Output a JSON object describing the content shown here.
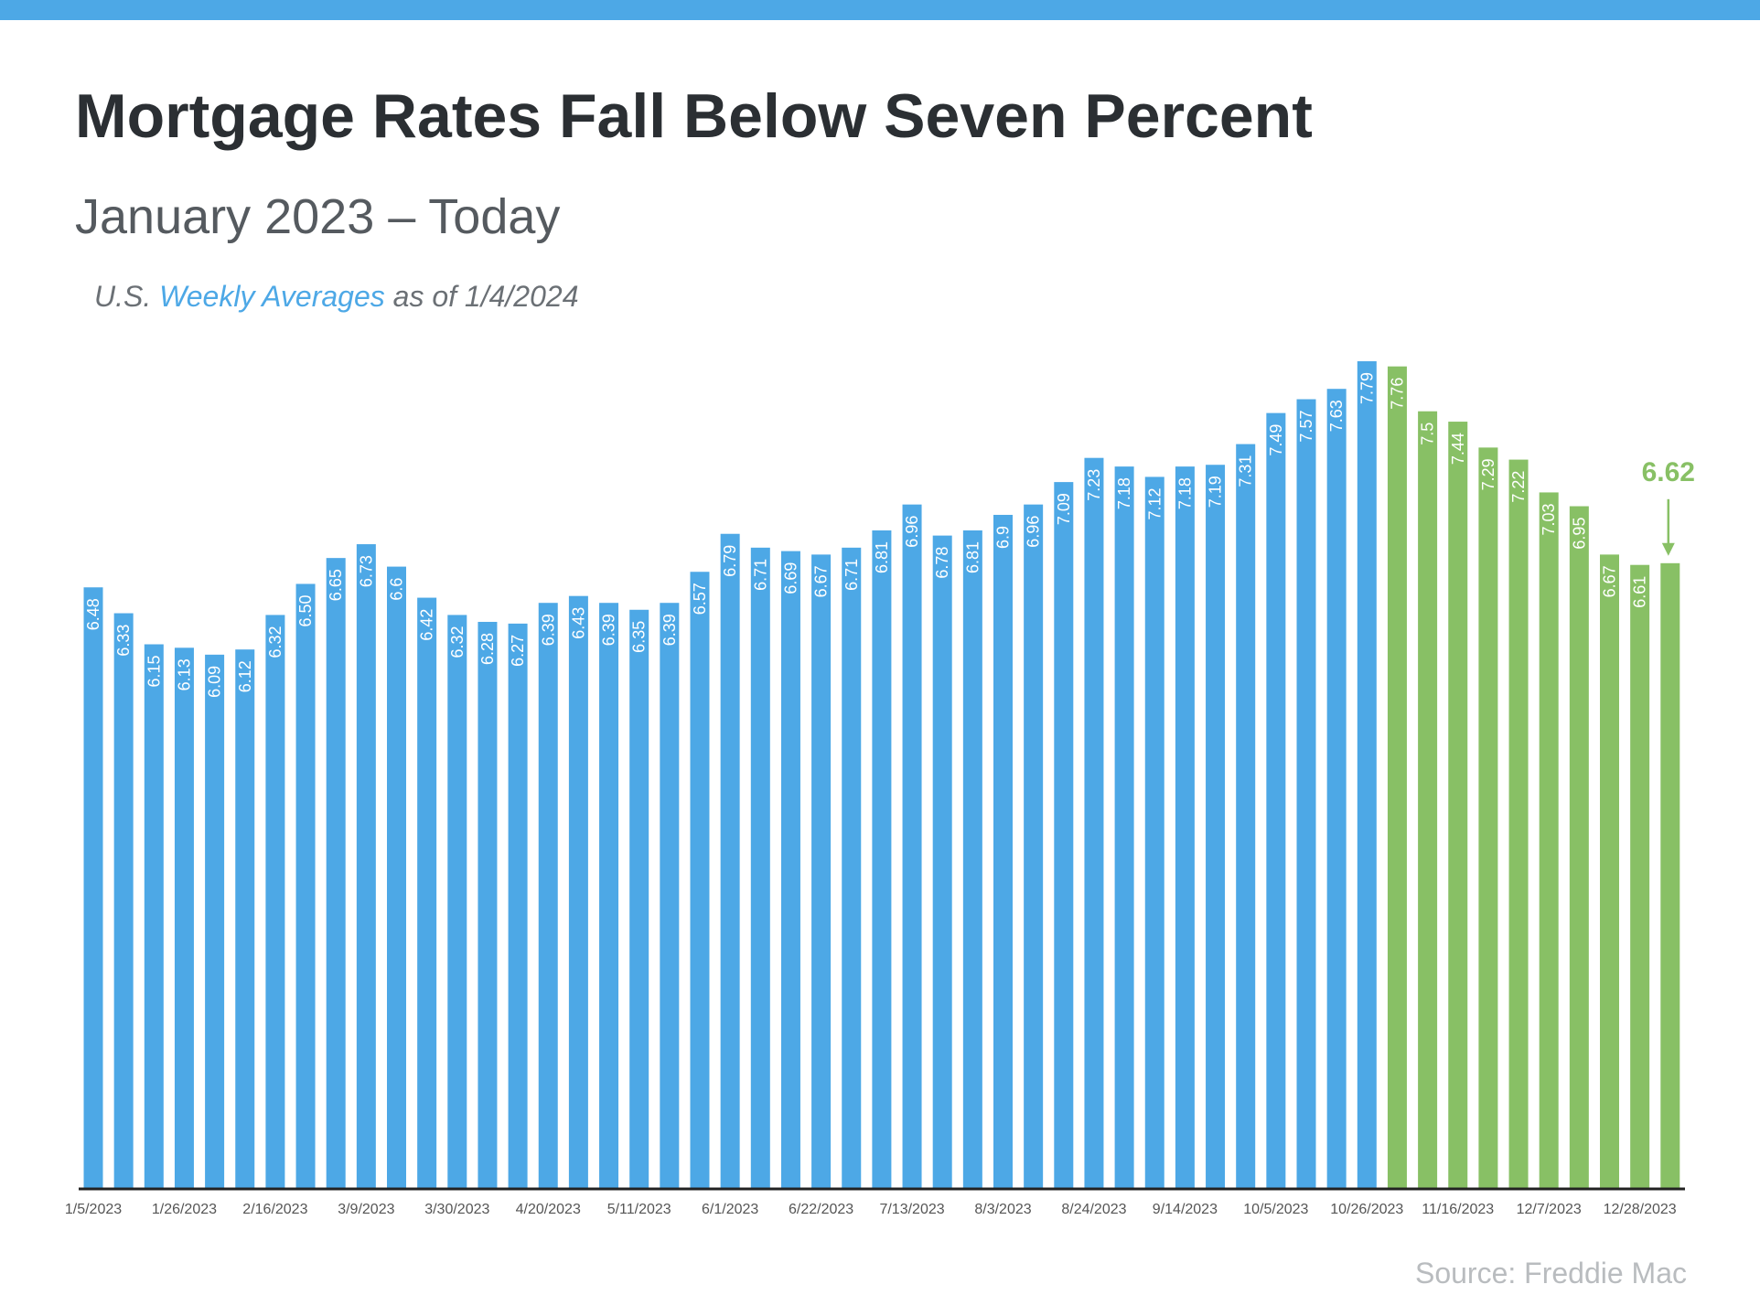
{
  "colors": {
    "blue": "#4DA8E6",
    "green": "#88C065",
    "axis": "#222222"
  },
  "chart_data": {
    "type": "bar",
    "title": "Mortgage Rates Fall Below Seven Percent",
    "subtitle": "January 2023 – Today",
    "note": {
      "prefix": "U.S. ",
      "highlight": "Weekly Averages",
      "suffix": " as of 1/4/2024"
    },
    "source": "Source: Freddie Mac",
    "xlabel": "",
    "ylabel": "",
    "ylim": [
      3,
      7.79
    ],
    "grid": false,
    "values": [
      6.48,
      6.33,
      6.15,
      6.13,
      6.09,
      6.12,
      6.32,
      6.5,
      6.65,
      6.73,
      6.6,
      6.42,
      6.32,
      6.28,
      6.27,
      6.39,
      6.43,
      6.39,
      6.35,
      6.39,
      6.57,
      6.79,
      6.71,
      6.69,
      6.67,
      6.71,
      6.81,
      6.96,
      6.78,
      6.81,
      6.9,
      6.96,
      7.09,
      7.23,
      7.18,
      7.12,
      7.18,
      7.19,
      7.31,
      7.49,
      7.57,
      7.63,
      7.79,
      7.76,
      7.5,
      7.44,
      7.29,
      7.22,
      7.03,
      6.95,
      6.67,
      6.61,
      6.62
    ],
    "value_labels": [
      "6.48",
      "6.33",
      "6.15",
      "6.13",
      "6.09",
      "6.12",
      "6.32",
      "6.50",
      "6.65",
      "6.73",
      "6.6",
      "6.42",
      "6.32",
      "6.28",
      "6.27",
      "6.39",
      "6.43",
      "6.39",
      "6.35",
      "6.39",
      "6.57",
      "6.79",
      "6.71",
      "6.69",
      "6.67",
      "6.71",
      "6.81",
      "6.96",
      "6.78",
      "6.81",
      "6.9",
      "6.96",
      "7.09",
      "7.23",
      "7.18",
      "7.12",
      "7.18",
      "7.19",
      "7.31",
      "7.49",
      "7.57",
      "7.63",
      "7.79",
      "7.76",
      "7.5",
      "7.44",
      "7.29",
      "7.22",
      "7.03",
      "6.95",
      "6.67",
      "6.61",
      ""
    ],
    "green_from_index": 43,
    "tick_every": 3,
    "tick_labels": [
      "1/5/2023",
      "1/26/2023",
      "2/16/2023",
      "3/9/2023",
      "3/30/2023",
      "4/20/2023",
      "5/11/2023",
      "6/1/2023",
      "6/22/2023",
      "7/13/2023",
      "8/3/2023",
      "8/24/2023",
      "9/14/2023",
      "10/5/2023",
      "10/26/2023",
      "11/16/2023",
      "12/7/2023",
      "12/28/2023"
    ],
    "annotation": {
      "label": "6.62",
      "index": 52
    }
  }
}
